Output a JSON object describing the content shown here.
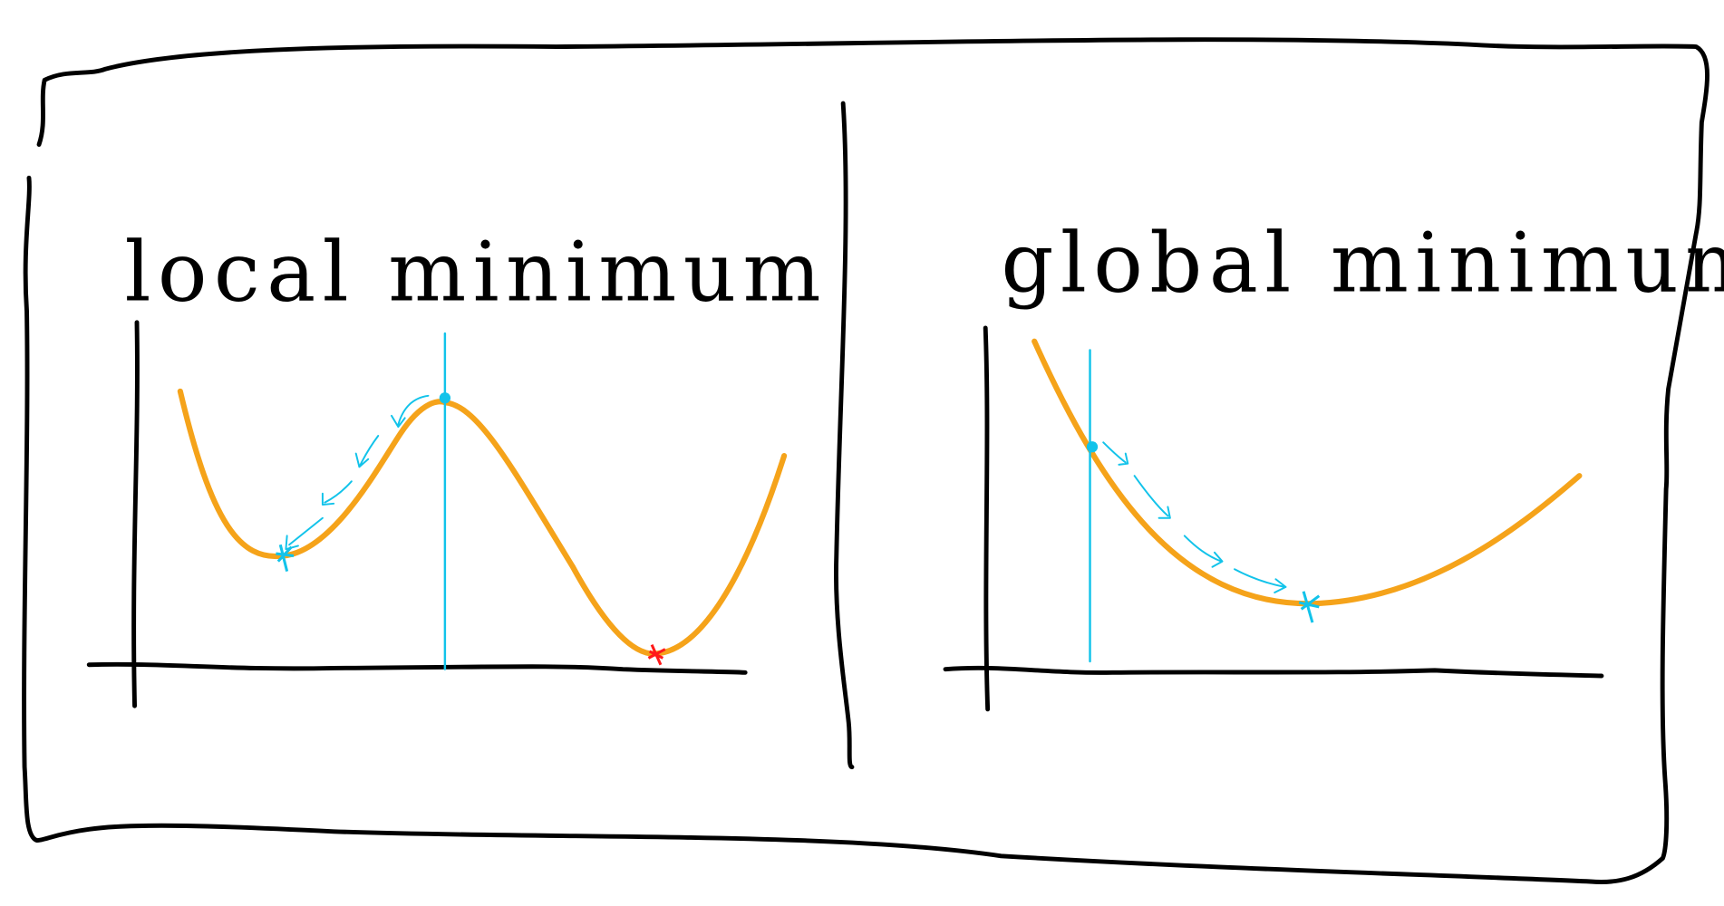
{
  "panels": [
    {
      "title": "local minimum"
    },
    {
      "title": "global minimum"
    }
  ]
}
